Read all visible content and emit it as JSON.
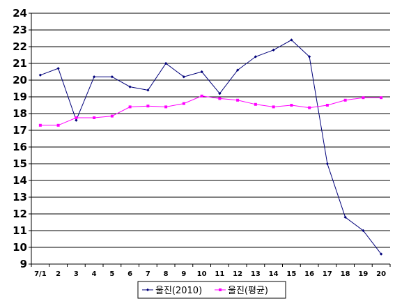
{
  "chart_data": {
    "type": "line",
    "categories": [
      "7/1",
      "2",
      "3",
      "4",
      "5",
      "6",
      "7",
      "8",
      "9",
      "10",
      "11",
      "12",
      "13",
      "14",
      "15",
      "16",
      "17",
      "18",
      "19",
      "20"
    ],
    "ylim": [
      9,
      24
    ],
    "yticks": [
      9,
      10,
      11,
      12,
      13,
      14,
      15,
      16,
      17,
      18,
      19,
      20,
      21,
      22,
      23,
      24
    ],
    "grid": true,
    "legend_position": "bottom",
    "series": [
      {
        "name": "울진(2010)",
        "color": "#00007a",
        "marker": "diamond",
        "values": [
          20.3,
          20.7,
          17.6,
          20.2,
          20.2,
          19.6,
          19.4,
          21.0,
          20.2,
          20.5,
          19.2,
          20.6,
          21.4,
          21.8,
          22.4,
          21.4,
          15.0,
          11.8,
          11.0,
          9.6
        ]
      },
      {
        "name": "울진(평균)",
        "color": "#ff00ff",
        "marker": "square",
        "values": [
          17.3,
          17.3,
          17.75,
          17.75,
          17.85,
          18.4,
          18.45,
          18.4,
          18.6,
          19.05,
          18.9,
          18.8,
          18.55,
          18.4,
          18.5,
          18.35,
          18.5,
          18.8,
          18.95,
          18.95
        ]
      }
    ]
  }
}
